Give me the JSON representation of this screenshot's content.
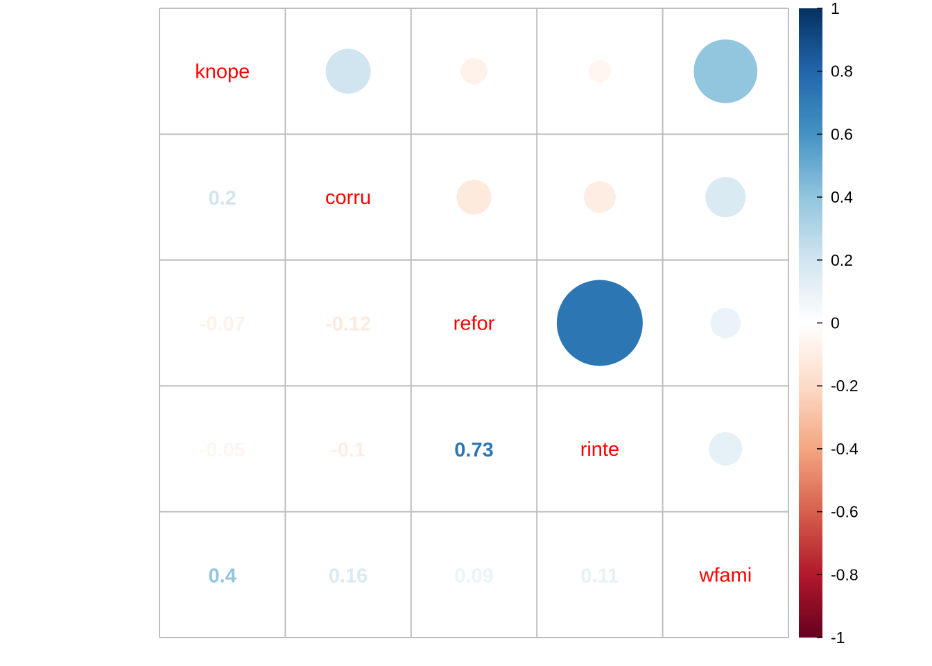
{
  "chart_data": {
    "type": "heatmap",
    "subtype": "correlation-matrix (corrplot mixed: numbers lower, circles upper)",
    "variables": [
      "knope",
      "corru",
      "refor",
      "rinte",
      "wfami"
    ],
    "matrix": [
      [
        1.0,
        0.2,
        -0.07,
        -0.05,
        0.4
      ],
      [
        0.2,
        1.0,
        -0.12,
        -0.1,
        0.16
      ],
      [
        -0.07,
        -0.12,
        1.0,
        0.73,
        0.09
      ],
      [
        -0.05,
        -0.1,
        0.73,
        1.0,
        0.11
      ],
      [
        0.4,
        0.16,
        0.09,
        0.11,
        1.0
      ]
    ],
    "lower_labels": [
      [
        "",
        "",
        "",
        "",
        ""
      ],
      [
        "0.2",
        "",
        "",
        "",
        ""
      ],
      [
        "-0.07",
        "-0.12",
        "",
        "",
        ""
      ],
      [
        "-0.05",
        "-0.1",
        "0.73",
        "",
        ""
      ],
      [
        "0.4",
        "0.16",
        "0.09",
        "0.11",
        ""
      ]
    ],
    "diagonal_label_color": "#ff0000",
    "colorbar": {
      "range": [
        -1,
        1
      ],
      "tick_labels": [
        "1",
        "0.8",
        "0.6",
        "0.4",
        "0.2",
        "0",
        "-0.2",
        "-0.4",
        "-0.6",
        "-0.8",
        "-1"
      ],
      "tick_values": [
        1,
        0.8,
        0.6,
        0.4,
        0.2,
        0,
        -0.2,
        -0.4,
        -0.6,
        -0.8,
        -1
      ],
      "palette": [
        "#67001F",
        "#B2182B",
        "#D6604D",
        "#F4A582",
        "#FDDBC7",
        "#FFFFFF",
        "#D1E5F0",
        "#92C5DE",
        "#4393C3",
        "#2166AC",
        "#053061"
      ]
    },
    "grid": true,
    "grid_color": "#bebebe",
    "legend_position": "right"
  }
}
